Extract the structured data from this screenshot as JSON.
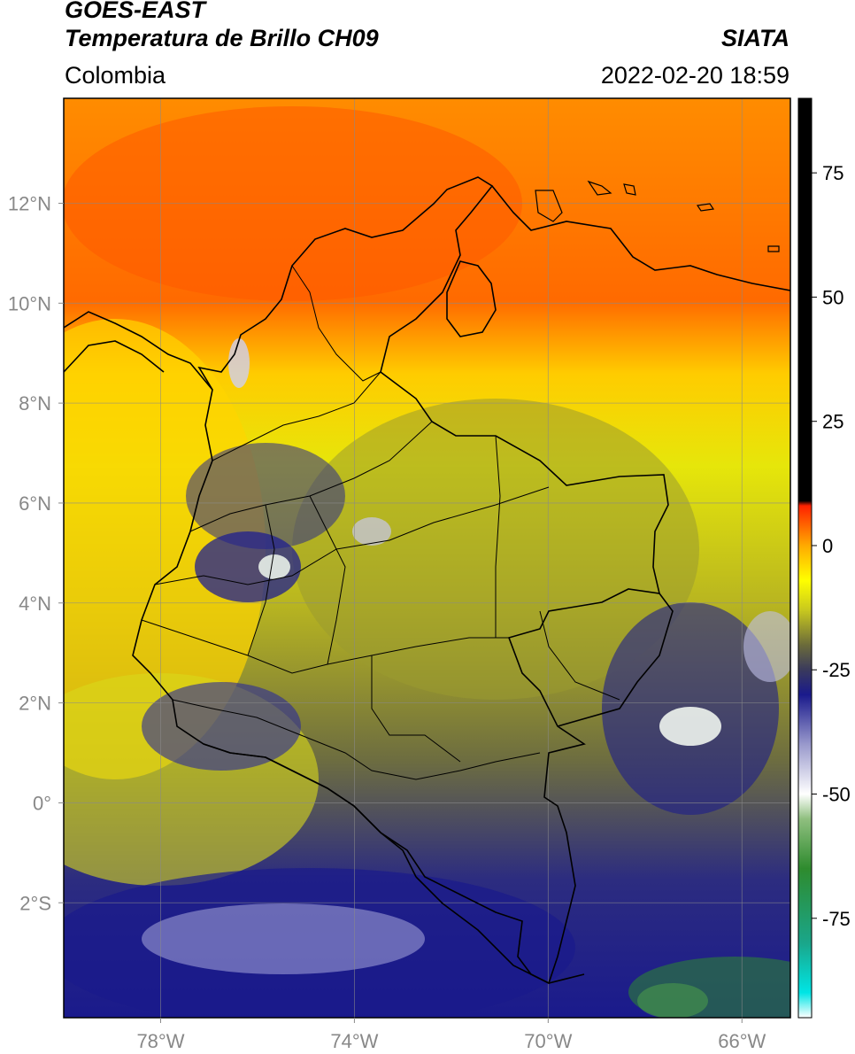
{
  "header": {
    "title_main": "GOES-EAST",
    "title_sub": "Temperatura de Brillo CH09",
    "region": "Colombia",
    "source": "SIATA",
    "timestamp": "2022-02-20 18:59"
  },
  "map": {
    "lat_ticks": [
      {
        "value": 12,
        "label": "12°N"
      },
      {
        "value": 10,
        "label": "10°N"
      },
      {
        "value": 8,
        "label": "8°N"
      },
      {
        "value": 6,
        "label": "6°N"
      },
      {
        "value": 4,
        "label": "4°N"
      },
      {
        "value": 2,
        "label": "2°N"
      },
      {
        "value": 0,
        "label": "0°"
      },
      {
        "value": -2,
        "label": "2°S"
      }
    ],
    "lon_ticks": [
      {
        "value": -78,
        "label": "78°W"
      },
      {
        "value": -74,
        "label": "74°W"
      },
      {
        "value": -70,
        "label": "70°W"
      },
      {
        "value": -66,
        "label": "66°W"
      }
    ],
    "extent": {
      "lon_min": -80,
      "lon_max": -65,
      "lat_min": -4.3,
      "lat_max": 14.1
    },
    "grid": true
  },
  "colorbar": {
    "unit_label": "",
    "range": [
      -95,
      90
    ],
    "ticks": [
      {
        "value": 75,
        "label": "75"
      },
      {
        "value": 50,
        "label": "50"
      },
      {
        "value": 25,
        "label": "25"
      },
      {
        "value": 0,
        "label": "0"
      },
      {
        "value": -25,
        "label": "-25"
      },
      {
        "value": -50,
        "label": "-50"
      },
      {
        "value": -75,
        "label": "-75"
      }
    ],
    "stops": [
      {
        "value": -95,
        "color": "#ffffff"
      },
      {
        "value": -90,
        "color": "#00e5e5"
      },
      {
        "value": -80,
        "color": "#1aa68a"
      },
      {
        "value": -65,
        "color": "#2e8b2e"
      },
      {
        "value": -55,
        "color": "#8fbf7f"
      },
      {
        "value": -50,
        "color": "#ffffff"
      },
      {
        "value": -40,
        "color": "#9999cc"
      },
      {
        "value": -30,
        "color": "#1a1a8c"
      },
      {
        "value": -25,
        "color": "#3a3a5c"
      },
      {
        "value": -20,
        "color": "#6b6b3a"
      },
      {
        "value": -13,
        "color": "#c8c81e"
      },
      {
        "value": -7,
        "color": "#ffff00"
      },
      {
        "value": 0,
        "color": "#ffaa00"
      },
      {
        "value": 8,
        "color": "#ff2200"
      },
      {
        "value": 9,
        "color": "#000000"
      },
      {
        "value": 90,
        "color": "#000000"
      }
    ]
  }
}
